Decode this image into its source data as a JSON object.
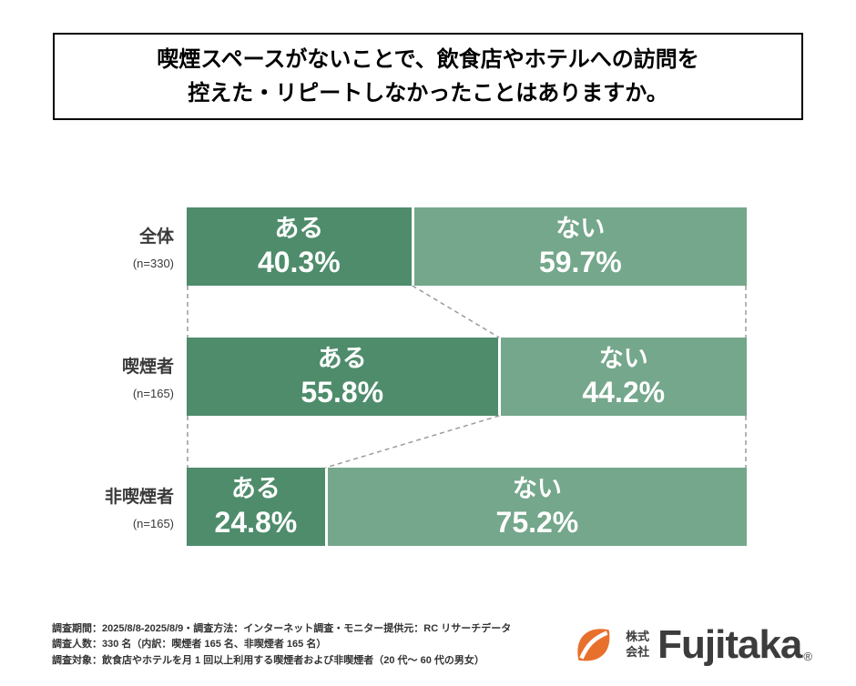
{
  "title": {
    "line1": "喫煙スペースがないことで、飲食店やホテルへの訪問を",
    "line2": "控えた・リピートしなかったことはありますか。"
  },
  "chart_data": {
    "type": "bar",
    "orientation": "horizontal_stacked",
    "unit": "%",
    "categories": [
      "全体",
      "喫煙者",
      "非喫煙者"
    ],
    "sample_sizes": [
      "n=330",
      "n=165",
      "n=165"
    ],
    "series": [
      {
        "name": "ある",
        "values": [
          40.3,
          55.8,
          24.8
        ],
        "color": "#4e8c6c"
      },
      {
        "name": "ない",
        "values": [
          59.7,
          44.2,
          75.2
        ],
        "color": "#74a78b"
      }
    ],
    "xlim": [
      0,
      100
    ],
    "legend": "none",
    "value_labels": "inside",
    "connector_lines": "dashed"
  },
  "rows": [
    {
      "category": "全体",
      "n": "(n=330)",
      "yes_label": "ある",
      "yes_value": "40.3%",
      "no_label": "ない",
      "no_value": "59.7%"
    },
    {
      "category": "喫煙者",
      "n": "(n=165)",
      "yes_label": "ある",
      "yes_value": "55.8%",
      "no_label": "ない",
      "no_value": "44.2%"
    },
    {
      "category": "非喫煙者",
      "n": "(n=165)",
      "yes_label": "ある",
      "yes_value": "24.8%",
      "no_label": "ない",
      "no_value": "75.2%"
    }
  ],
  "footer": {
    "line1": "調査期間：2025/8/8-2025/8/9・調査方法：インターネット調査・モニター提供元：RC リサーチデータ",
    "line2": "調査人数：330 名（内訳：喫煙者 165 名、非喫煙者 165 名）",
    "line3": "調査対象：飲食店やホテルを月 1 回以上利用する喫煙者および非喫煙者（20 代〜 60 代の男女）"
  },
  "logo": {
    "company_line1": "株式",
    "company_line2": "会社",
    "brand": "Fujitaka",
    "registered_mark": "®"
  },
  "colors": {
    "bar_yes": "#4e8c6c",
    "bar_no": "#74a78b",
    "logo": "#e8702d",
    "connector": "#9b9b9b"
  }
}
